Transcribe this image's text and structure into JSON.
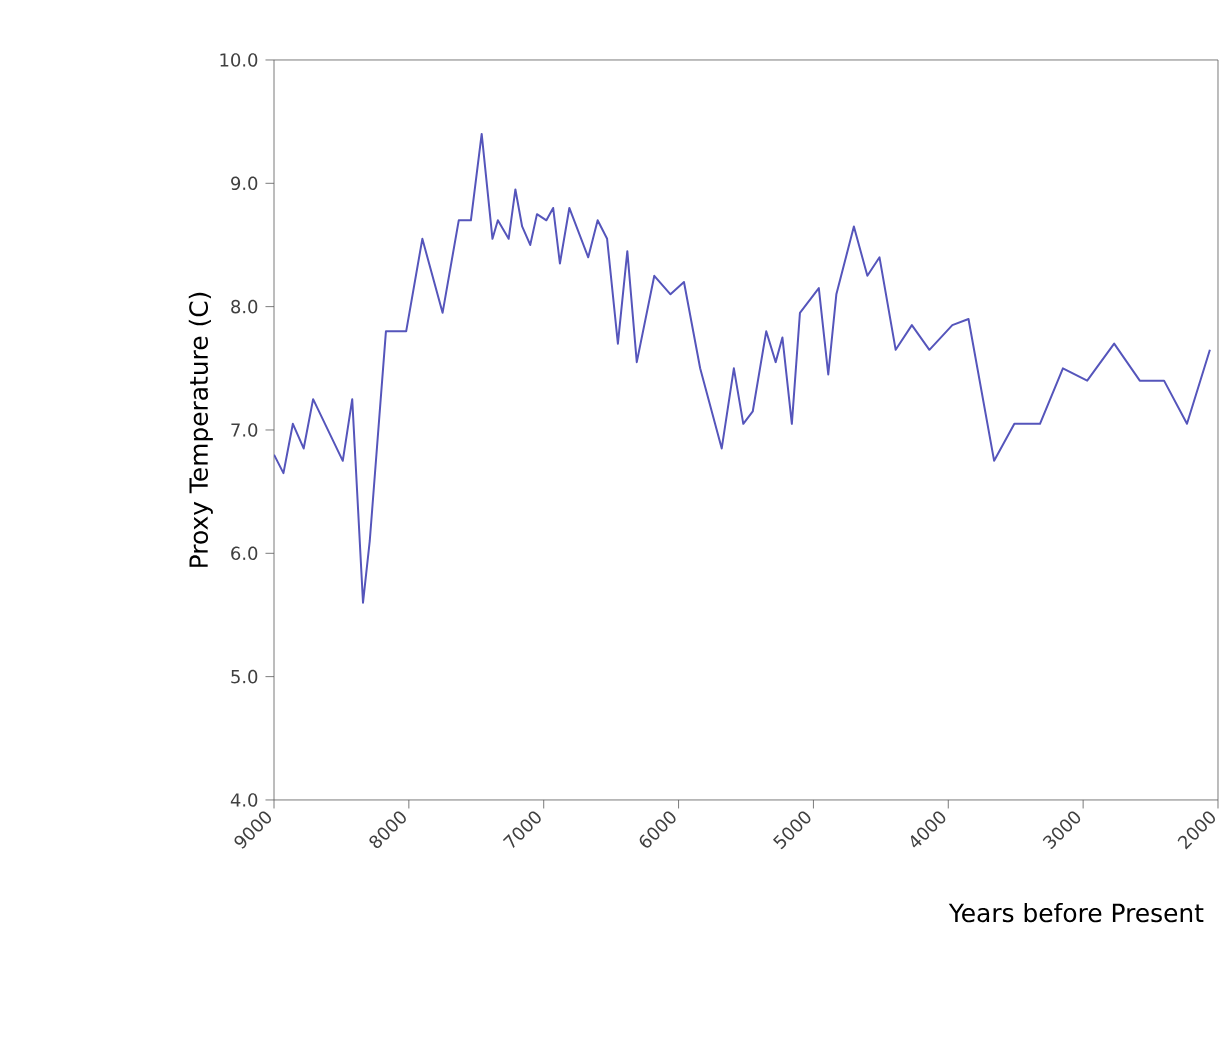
{
  "chart_data": {
    "type": "line",
    "xlabel": "Years before Present",
    "ylabel": "Proxy Temperature (C)",
    "x": [
      9000,
      8930,
      8860,
      8780,
      8710,
      8490,
      8420,
      8340,
      8290,
      8170,
      8020,
      7900,
      7750,
      7630,
      7540,
      7460,
      7380,
      7340,
      7260,
      7210,
      7160,
      7100,
      7050,
      6980,
      6930,
      6880,
      6810,
      6670,
      6600,
      6530,
      6450,
      6380,
      6310,
      6180,
      6060,
      5960,
      5840,
      5680,
      5590,
      5520,
      5450,
      5350,
      5280,
      5230,
      5160,
      5100,
      4960,
      4890,
      4830,
      4700,
      4600,
      4510,
      4390,
      4270,
      4140,
      3970,
      3850,
      3660,
      3510,
      3320,
      3150,
      2970,
      2770,
      2580,
      2400,
      2230,
      2060
    ],
    "series": [
      {
        "color": "#5555bb",
        "values": [
          6.8,
          6.65,
          7.05,
          6.85,
          7.25,
          6.75,
          7.25,
          5.6,
          6.1,
          7.8,
          7.8,
          8.55,
          7.95,
          8.7,
          8.7,
          9.4,
          8.55,
          8.7,
          8.55,
          8.95,
          8.65,
          8.5,
          8.75,
          8.7,
          8.8,
          8.35,
          8.8,
          8.4,
          8.7,
          8.55,
          7.7,
          8.45,
          7.55,
          8.25,
          8.1,
          8.2,
          7.5,
          6.85,
          7.5,
          7.05,
          7.15,
          7.8,
          7.55,
          7.75,
          7.05,
          7.95,
          8.15,
          7.45,
          8.1,
          8.65,
          8.25,
          8.4,
          7.65,
          7.85,
          7.65,
          7.85,
          7.9,
          6.75,
          7.05,
          7.05,
          7.5,
          7.4,
          7.7,
          7.4,
          7.4,
          7.05,
          7.65
        ]
      }
    ],
    "xlim": [
      9000,
      2000
    ],
    "xticks": [
      9000,
      8000,
      7000,
      6000,
      5000,
      4000,
      3000,
      2000
    ],
    "ylim": [
      4,
      10
    ],
    "yticks": [
      {
        "value": 4,
        "label": "4.0"
      },
      {
        "value": 5,
        "label": "5.0"
      },
      {
        "value": 6,
        "label": "6.0"
      },
      {
        "value": 7,
        "label": "7.0"
      },
      {
        "value": 8,
        "label": "8.0"
      },
      {
        "value": 9,
        "label": "9.0"
      },
      {
        "value": 10,
        "label": "10.0"
      }
    ],
    "grid": false,
    "marker": "none",
    "line_style": "solid"
  }
}
